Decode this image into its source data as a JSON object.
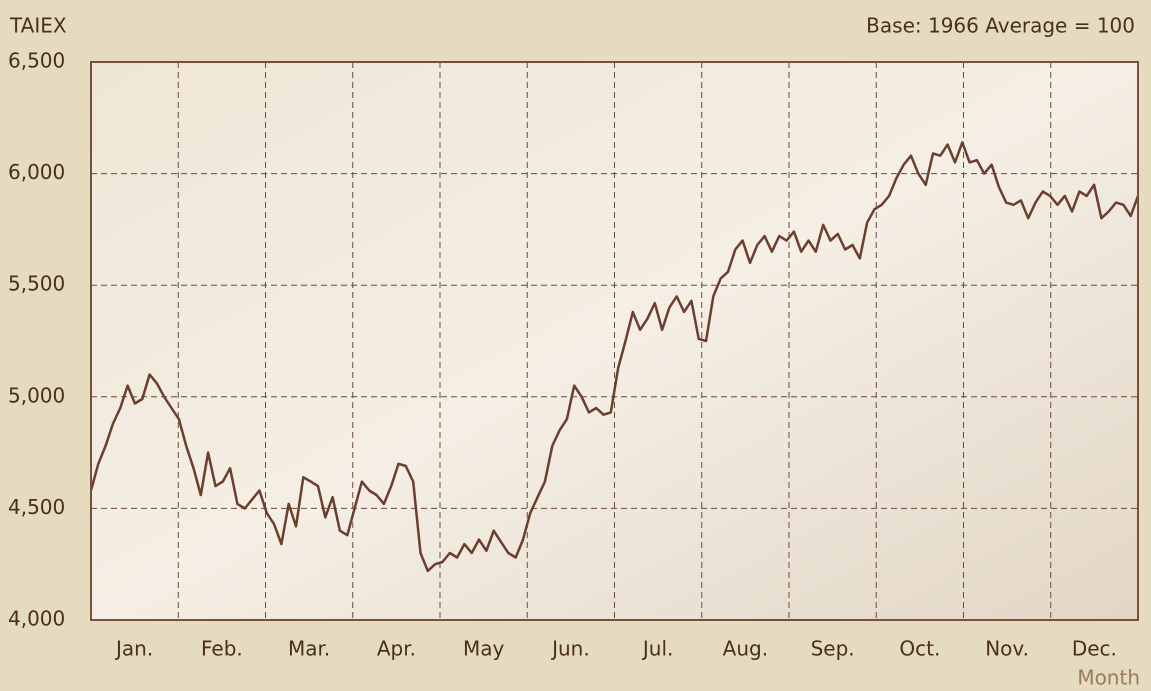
{
  "chart_data": {
    "type": "line",
    "y_label": "TAIEX",
    "subtitle": "Base: 1966 Average = 100",
    "x_label": "Month",
    "categories": [
      null,
      null,
      null,
      null,
      null,
      null,
      "Jan.",
      null,
      null,
      null,
      null,
      null,
      null,
      null,
      null,
      null,
      null,
      null,
      "Feb.",
      null,
      null,
      null,
      null,
      null,
      null,
      null,
      null,
      null,
      null,
      null,
      "Mar.",
      null,
      null,
      null,
      null,
      null,
      null,
      null,
      null,
      null,
      null,
      null,
      "Apr.",
      null,
      null,
      null,
      null,
      null,
      null,
      null,
      null,
      null,
      null,
      null,
      "May",
      null,
      null,
      null,
      null,
      null,
      null,
      null,
      null,
      null,
      null,
      null,
      "Jun.",
      null,
      null,
      null,
      null,
      null,
      null,
      null,
      null,
      null,
      null,
      null,
      "Jul.",
      null,
      null,
      null,
      null,
      null,
      null,
      null,
      null,
      null,
      null,
      null,
      "Aug.",
      null,
      null,
      null,
      null,
      null,
      null,
      null,
      null,
      null,
      null,
      null,
      "Sep.",
      null,
      null,
      null,
      null,
      null,
      null,
      null,
      null,
      null,
      null,
      null,
      "Oct.",
      null,
      null,
      null,
      null,
      null,
      null,
      null,
      null,
      null,
      null,
      null,
      "Nov.",
      null,
      null,
      null,
      null,
      null,
      null,
      null,
      null,
      null,
      null,
      null,
      "Dec.",
      null,
      null,
      null,
      null,
      null
    ],
    "series": [
      {
        "color": "#6b3e2e",
        "values": [
          4580,
          4700,
          4780,
          4880,
          4950,
          5050,
          4970,
          4990,
          5100,
          5060,
          5000,
          4950,
          4900,
          4780,
          4680,
          4560,
          4750,
          4600,
          4620,
          4680,
          4520,
          4500,
          4540,
          4580,
          4480,
          4430,
          4340,
          4520,
          4420,
          4640,
          4620,
          4600,
          4460,
          4550,
          4400,
          4380,
          4500,
          4620,
          4580,
          4560,
          4520,
          4600,
          4700,
          4690,
          4620,
          4300,
          4220,
          4250,
          4260,
          4300,
          4280,
          4340,
          4300,
          4360,
          4310,
          4400,
          4350,
          4300,
          4280,
          4360,
          4480,
          4550,
          4620,
          4780,
          4850,
          4900,
          5050,
          5000,
          4930,
          4950,
          4920,
          4930,
          5130,
          5250,
          5380,
          5300,
          5350,
          5420,
          5300,
          5400,
          5450,
          5380,
          5430,
          5260,
          5250,
          5450,
          5530,
          5560,
          5660,
          5700,
          5600,
          5680,
          5720,
          5650,
          5720,
          5700,
          5740,
          5650,
          5700,
          5650,
          5770,
          5700,
          5730,
          5660,
          5680,
          5620,
          5780,
          5840,
          5860,
          5900,
          5980,
          6040,
          6080,
          6000,
          5950,
          6090,
          6080,
          6130,
          6050,
          6140,
          6050,
          6060,
          6000,
          6040,
          5940,
          5870,
          5860,
          5880,
          5800,
          5870,
          5920,
          5900,
          5860,
          5900,
          5830,
          5920,
          5900,
          5950,
          5800,
          5830,
          5870,
          5860,
          5810,
          5900
        ]
      }
    ],
    "ylim": [
      4000,
      6500
    ],
    "yticks": [
      {
        "value": 4000,
        "label": "4,000"
      },
      {
        "value": 4500,
        "label": "4,500"
      },
      {
        "value": 5000,
        "label": "5,000"
      },
      {
        "value": 5500,
        "label": "5,500"
      },
      {
        "value": 6000,
        "label": "6,000"
      },
      {
        "value": 6500,
        "label": "6,500"
      }
    ],
    "grid": true
  }
}
